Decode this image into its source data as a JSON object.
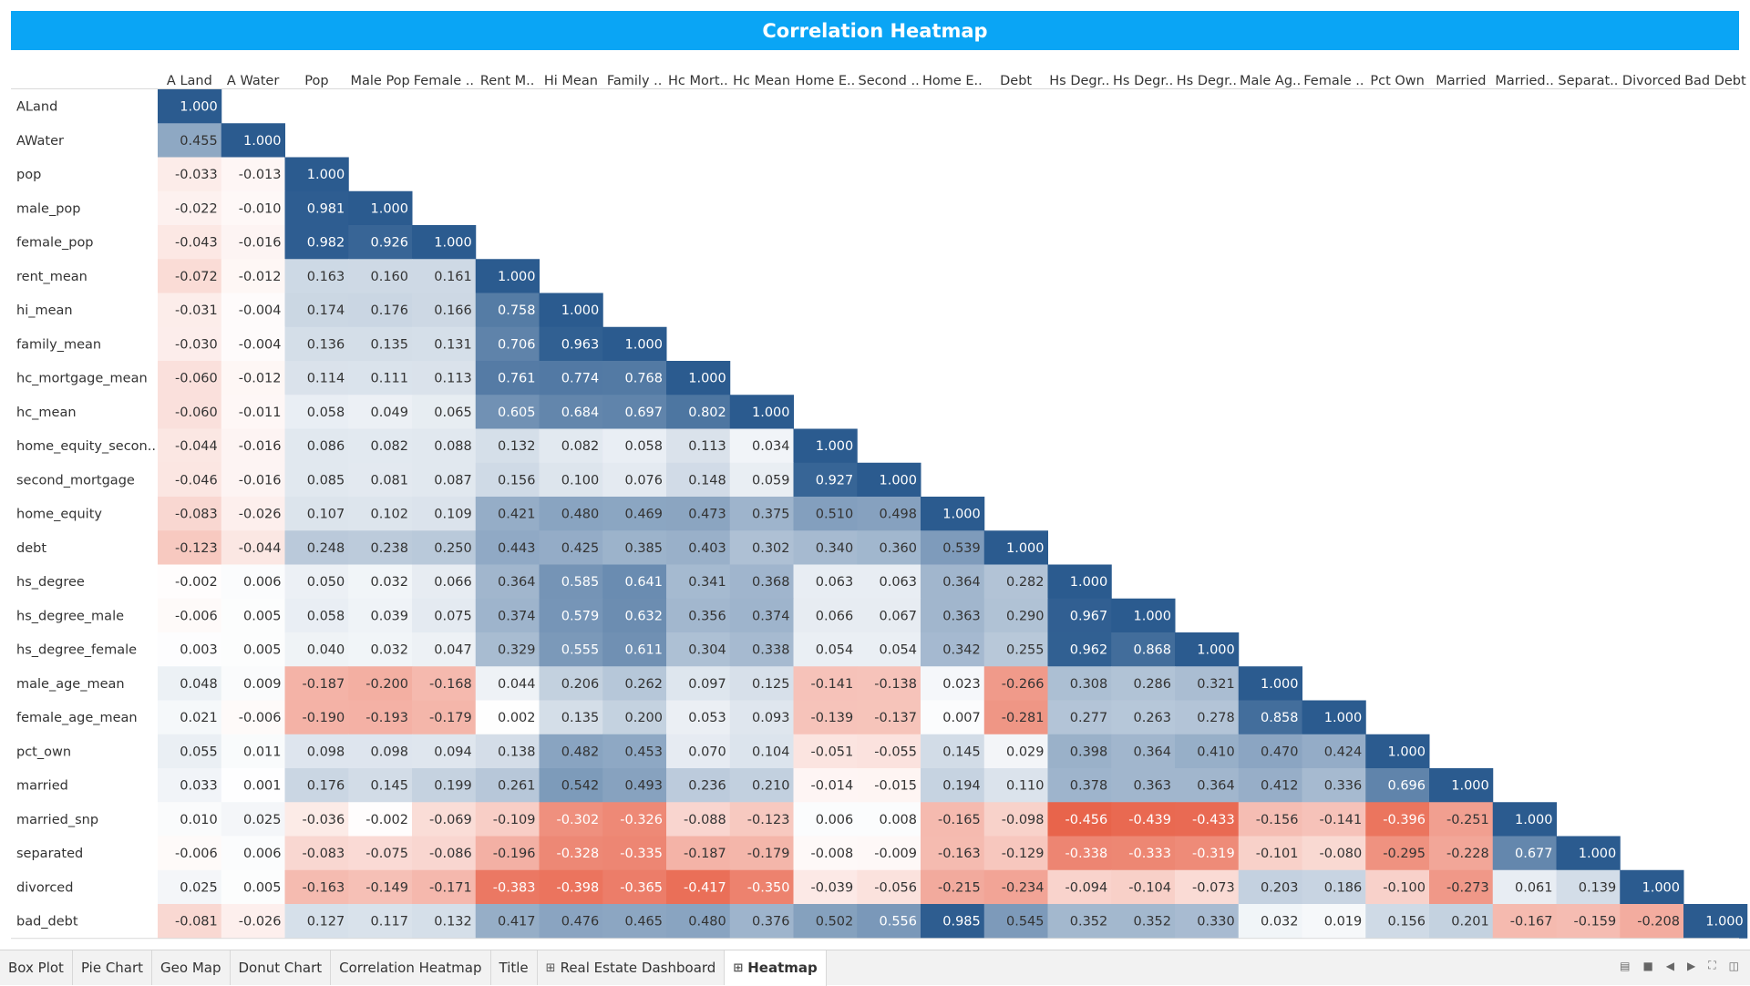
{
  "title": "Correlation Heatmap",
  "chart_data": {
    "type": "heatmap",
    "title": "Correlation Heatmap",
    "columns": [
      "A Land",
      "A Water",
      "Pop",
      "Male Pop",
      "Female ..",
      "Rent M..",
      "Hi Mean",
      "Family ..",
      "Hc Mort..",
      "Hc Mean",
      "Home E..",
      "Second ..",
      "Home E..",
      "Debt",
      "Hs Degr..",
      "Hs Degr..",
      "Hs Degr..",
      "Male Ag..",
      "Female ..",
      "Pct Own",
      "Married",
      "Married..",
      "Separat..",
      "Divorced",
      "Bad Debt"
    ],
    "rows": [
      "ALand",
      "AWater",
      "pop",
      "male_pop",
      "female_pop",
      "rent_mean",
      "hi_mean",
      "family_mean",
      "hc_mortgage_mean",
      "hc_mean",
      "home_equity_secon..",
      "second_mortgage",
      "home_equity",
      "debt",
      "hs_degree",
      "hs_degree_male",
      "hs_degree_female",
      "male_age_mean",
      "female_age_mean",
      "pct_own",
      "married",
      "married_snp",
      "separated",
      "divorced",
      "bad_debt"
    ],
    "values": [
      [
        1.0
      ],
      [
        0.455,
        1.0
      ],
      [
        -0.033,
        -0.013,
        1.0
      ],
      [
        -0.022,
        -0.01,
        0.981,
        1.0
      ],
      [
        -0.043,
        -0.016,
        0.982,
        0.926,
        1.0
      ],
      [
        -0.072,
        -0.012,
        0.163,
        0.16,
        0.161,
        1.0
      ],
      [
        -0.031,
        -0.004,
        0.174,
        0.176,
        0.166,
        0.758,
        1.0
      ],
      [
        -0.03,
        -0.004,
        0.136,
        0.135,
        0.131,
        0.706,
        0.963,
        1.0
      ],
      [
        -0.06,
        -0.012,
        0.114,
        0.111,
        0.113,
        0.761,
        0.774,
        0.768,
        1.0
      ],
      [
        -0.06,
        -0.011,
        0.058,
        0.049,
        0.065,
        0.605,
        0.684,
        0.697,
        0.802,
        1.0
      ],
      [
        -0.044,
        -0.016,
        0.086,
        0.082,
        0.088,
        0.132,
        0.082,
        0.058,
        0.113,
        0.034,
        1.0
      ],
      [
        -0.046,
        -0.016,
        0.085,
        0.081,
        0.087,
        0.156,
        0.1,
        0.076,
        0.148,
        0.059,
        0.927,
        1.0
      ],
      [
        -0.083,
        -0.026,
        0.107,
        0.102,
        0.109,
        0.421,
        0.48,
        0.469,
        0.473,
        0.375,
        0.51,
        0.498,
        1.0
      ],
      [
        -0.123,
        -0.044,
        0.248,
        0.238,
        0.25,
        0.443,
        0.425,
        0.385,
        0.403,
        0.302,
        0.34,
        0.36,
        0.539,
        1.0
      ],
      [
        -0.002,
        0.006,
        0.05,
        0.032,
        0.066,
        0.364,
        0.585,
        0.641,
        0.341,
        0.368,
        0.063,
        0.063,
        0.364,
        0.282,
        1.0
      ],
      [
        -0.006,
        0.005,
        0.058,
        0.039,
        0.075,
        0.374,
        0.579,
        0.632,
        0.356,
        0.374,
        0.066,
        0.067,
        0.363,
        0.29,
        0.967,
        1.0
      ],
      [
        0.003,
        0.005,
        0.04,
        0.032,
        0.047,
        0.329,
        0.555,
        0.611,
        0.304,
        0.338,
        0.054,
        0.054,
        0.342,
        0.255,
        0.962,
        0.868,
        1.0
      ],
      [
        0.048,
        0.009,
        -0.187,
        -0.2,
        -0.168,
        0.044,
        0.206,
        0.262,
        0.097,
        0.125,
        -0.141,
        -0.138,
        0.023,
        -0.266,
        0.308,
        0.286,
        0.321,
        1.0
      ],
      [
        0.021,
        -0.006,
        -0.19,
        -0.193,
        -0.179,
        0.002,
        0.135,
        0.2,
        0.053,
        0.093,
        -0.139,
        -0.137,
        0.007,
        -0.281,
        0.277,
        0.263,
        0.278,
        0.858,
        1.0
      ],
      [
        0.055,
        0.011,
        0.098,
        0.098,
        0.094,
        0.138,
        0.482,
        0.453,
        0.07,
        0.104,
        -0.051,
        -0.055,
        0.145,
        0.029,
        0.398,
        0.364,
        0.41,
        0.47,
        0.424,
        1.0
      ],
      [
        0.033,
        0.001,
        0.176,
        0.145,
        0.199,
        0.261,
        0.542,
        0.493,
        0.236,
        0.21,
        -0.014,
        -0.015,
        0.194,
        0.11,
        0.378,
        0.363,
        0.364,
        0.412,
        0.336,
        0.696,
        1.0
      ],
      [
        0.01,
        0.025,
        -0.036,
        -0.002,
        -0.069,
        -0.109,
        -0.302,
        -0.326,
        -0.088,
        -0.123,
        0.006,
        0.008,
        -0.165,
        -0.098,
        -0.456,
        -0.439,
        -0.433,
        -0.156,
        -0.141,
        -0.396,
        -0.251,
        1.0
      ],
      [
        -0.006,
        0.006,
        -0.083,
        -0.075,
        -0.086,
        -0.196,
        -0.328,
        -0.335,
        -0.187,
        -0.179,
        -0.008,
        -0.009,
        -0.163,
        -0.129,
        -0.338,
        -0.333,
        -0.319,
        -0.101,
        -0.08,
        -0.295,
        -0.228,
        0.677,
        1.0
      ],
      [
        0.025,
        0.005,
        -0.163,
        -0.149,
        -0.171,
        -0.383,
        -0.398,
        -0.365,
        -0.417,
        -0.35,
        -0.039,
        -0.056,
        -0.215,
        -0.234,
        -0.094,
        -0.104,
        -0.073,
        0.203,
        0.186,
        -0.1,
        -0.273,
        0.061,
        0.139,
        1.0
      ],
      [
        -0.081,
        -0.026,
        0.127,
        0.117,
        0.132,
        0.417,
        0.476,
        0.465,
        0.48,
        0.376,
        0.502,
        0.556,
        0.985,
        0.545,
        0.352,
        0.352,
        0.33,
        0.032,
        0.019,
        0.156,
        0.201,
        -0.167,
        -0.159,
        -0.208,
        1.0
      ]
    ],
    "value_range": [
      -1,
      1
    ],
    "colors": {
      "positive": "#2b5b8f",
      "negative": "#e8634a",
      "zero": "#ffffff"
    }
  },
  "tabs": [
    {
      "label": "Box Plot",
      "icon": ""
    },
    {
      "label": "Pie Chart",
      "icon": ""
    },
    {
      "label": "Geo Map",
      "icon": ""
    },
    {
      "label": "Donut Chart",
      "icon": ""
    },
    {
      "label": "Correlation Heatmap",
      "icon": ""
    },
    {
      "label": "Title",
      "icon": ""
    },
    {
      "label": "Real Estate Dashboard",
      "icon": "dashboard-icon"
    },
    {
      "label": "Heatmap",
      "icon": "dashboard-icon",
      "active": true
    }
  ],
  "nav_controls": [
    "grid-view-icon",
    "tile-view-icon",
    "prev-sheet-icon",
    "next-sheet-icon",
    "fullscreen-icon",
    "present-icon"
  ]
}
